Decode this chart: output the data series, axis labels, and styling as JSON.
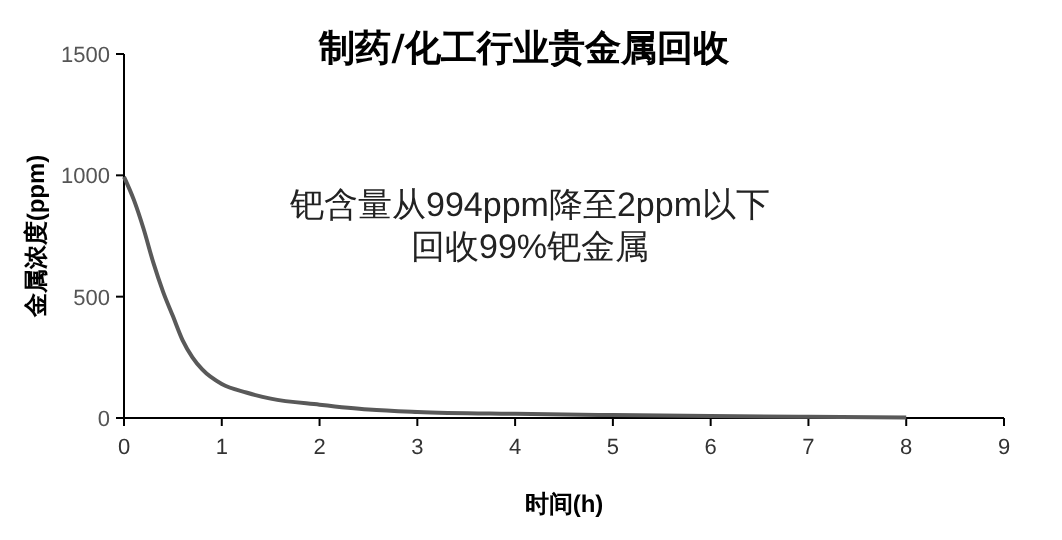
{
  "chart_data": {
    "type": "line",
    "title": "制药/化工行业贵金属回收",
    "xlabel": "时间(h)",
    "ylabel": "金属浓度(ppm)",
    "annotations": [
      "钯含量从994ppm降至2ppm以下",
      "回收99%钯金属"
    ],
    "x": [
      0,
      0.1,
      0.2,
      0.3,
      0.4,
      0.5,
      0.6,
      0.7,
      0.8,
      1,
      1.25,
      1.5,
      2,
      2.5,
      3,
      4,
      5,
      6,
      7,
      8
    ],
    "series": [
      {
        "color": "#595959",
        "values": [
          994,
          900,
          780,
          640,
          520,
          420,
          320,
          250,
          200,
          140,
          105,
          80,
          55,
          35,
          25,
          17,
          12,
          8,
          5,
          2
        ]
      }
    ],
    "xlim": [
      0,
      9
    ],
    "xticks": [
      0,
      1,
      2,
      3,
      4,
      5,
      6,
      7,
      8,
      9
    ],
    "ylim": [
      0,
      1500
    ],
    "yticks": [
      0,
      500,
      1000,
      1500
    ],
    "grid": false,
    "marker": "none",
    "line_style": "solid"
  }
}
